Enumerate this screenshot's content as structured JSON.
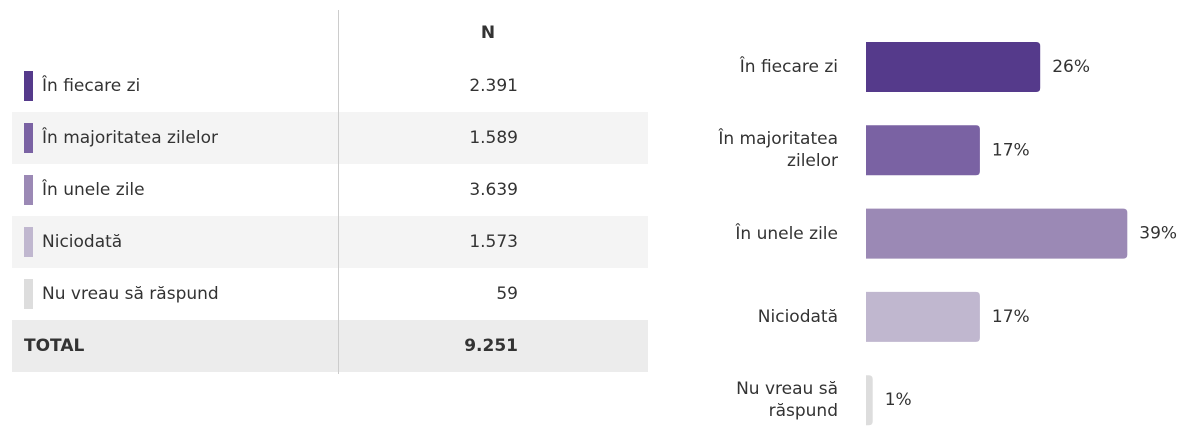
{
  "table": {
    "header": [
      "",
      "N"
    ],
    "rows": [
      [
        "În fiecare zi",
        "2.391"
      ],
      [
        "În majoritatea zilelor",
        "1.589"
      ],
      [
        "În unele zile",
        "3.639"
      ],
      [
        "Niciodată",
        "1.573"
      ],
      [
        "Nu vreau să răspund",
        "59"
      ]
    ],
    "total": [
      "TOTAL",
      "9.251"
    ]
  },
  "chart_data": {
    "type": "hbar",
    "categories": [
      "În fiecare zi",
      "În majoritatea zilelor",
      "În unele zile",
      "Niciodată",
      "Nu vreau să răspund"
    ],
    "values": [
      26,
      17,
      39,
      17,
      1
    ],
    "value_labels": [
      "26%",
      "17%",
      "39%",
      "17%",
      "1%"
    ],
    "colors": [
      "#553a8b",
      "#7a62a3",
      "#9b89b5",
      "#c0b7cf",
      "#dddddd"
    ],
    "xlim": [
      0,
      40
    ]
  }
}
